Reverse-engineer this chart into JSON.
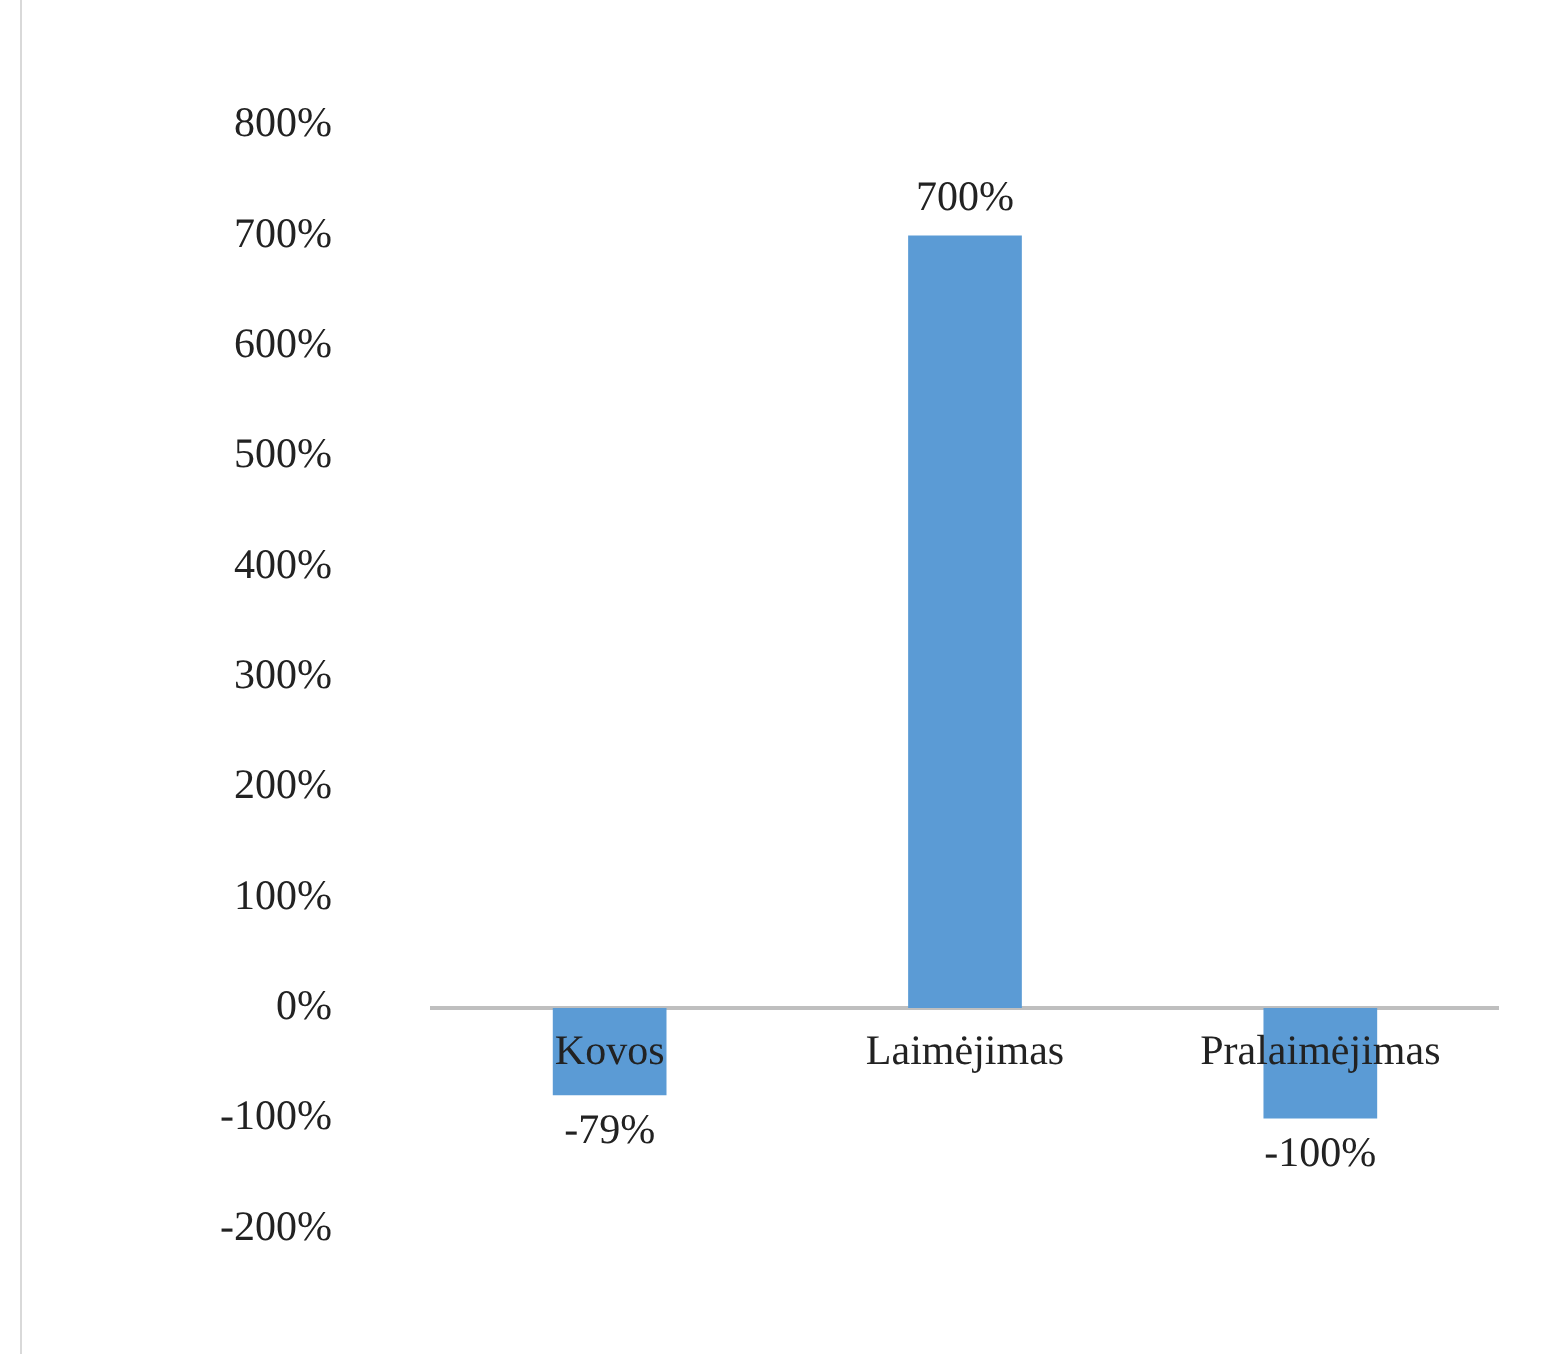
{
  "chart_data": {
    "type": "bar",
    "categories": [
      "Kovos",
      "Laimėjimas",
      "Pralaimėjimas"
    ],
    "values": [
      -79,
      700,
      -100
    ],
    "color": "#5b9bd5",
    "value_labels": [
      "-79%",
      "700%",
      "-100%"
    ],
    "ylim": [
      -200,
      800
    ],
    "yticks": [
      {
        "value": -200,
        "label": "-200%"
      },
      {
        "value": -100,
        "label": "-100%"
      },
      {
        "value": 0,
        "label": "0%"
      },
      {
        "value": 100,
        "label": "100%"
      },
      {
        "value": 200,
        "label": "200%"
      },
      {
        "value": 300,
        "label": "300%"
      },
      {
        "value": 400,
        "label": "400%"
      },
      {
        "value": 500,
        "label": "500%"
      },
      {
        "value": 600,
        "label": "600%"
      },
      {
        "value": 700,
        "label": "700%"
      },
      {
        "value": 800,
        "label": "800%"
      }
    ],
    "grid": false,
    "legend": false
  }
}
